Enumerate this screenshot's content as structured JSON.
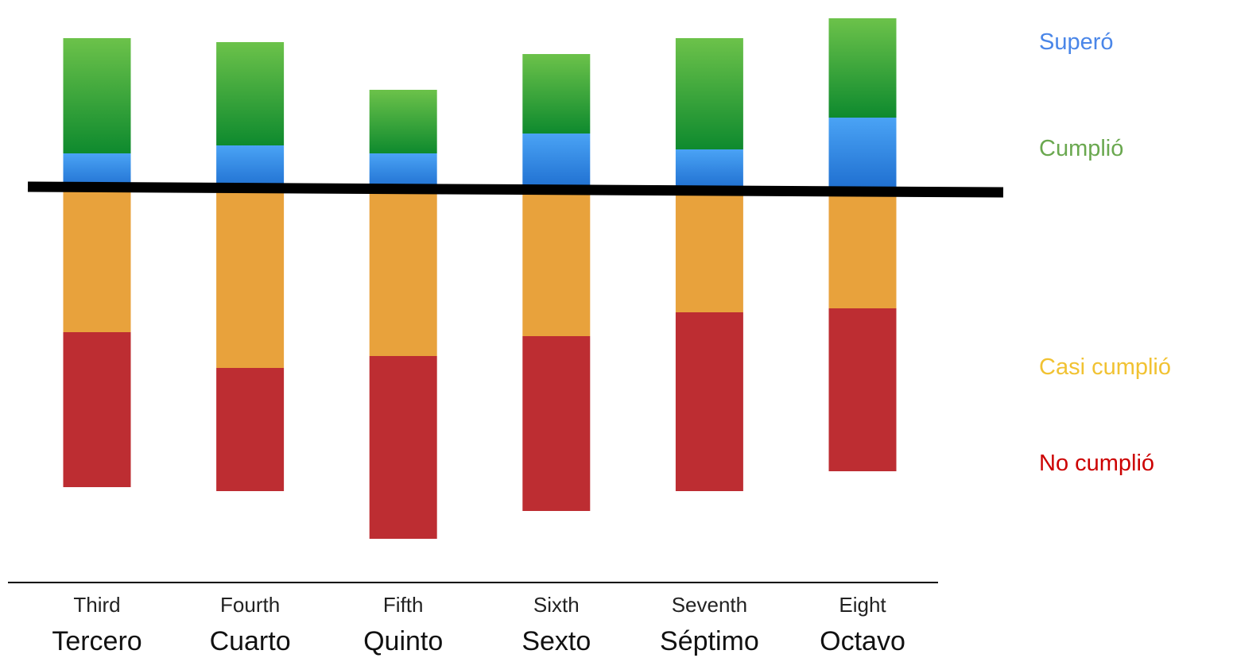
{
  "chart_data": {
    "type": "bar",
    "stacked": "diverging",
    "baseline_label": "",
    "categories": [
      {
        "en": "Third",
        "es": "Tercero"
      },
      {
        "en": "Fourth",
        "es": "Cuarto"
      },
      {
        "en": "Fifth",
        "es": "Quinto"
      },
      {
        "en": "Sixth",
        "es": "Sexto"
      },
      {
        "en": "Seventh",
        "es": "Séptimo"
      },
      {
        "en": "Eight",
        "es": "Octavo"
      }
    ],
    "series": [
      {
        "name": "Superó",
        "color": "#3f8fe8",
        "direction": "up",
        "values": [
          9,
          11,
          9,
          14,
          10,
          18
        ]
      },
      {
        "name": "Cumplió",
        "color": "#3fab3a",
        "direction": "up",
        "values": [
          29,
          26,
          16,
          20,
          28,
          25
        ]
      },
      {
        "name": "Casi cumplió",
        "color": "#e8a23c",
        "direction": "down",
        "values": [
          36,
          45,
          42,
          37,
          31,
          30
        ]
      },
      {
        "name": "No cumplió",
        "color": "#bd2d32",
        "direction": "down",
        "values": [
          39,
          31,
          46,
          44,
          45,
          41
        ]
      }
    ],
    "legend_colors": [
      "#4a86e8",
      "#6aa84f",
      "#f1c232",
      "#cc0000"
    ],
    "legend_position": "right",
    "grid": false
  }
}
